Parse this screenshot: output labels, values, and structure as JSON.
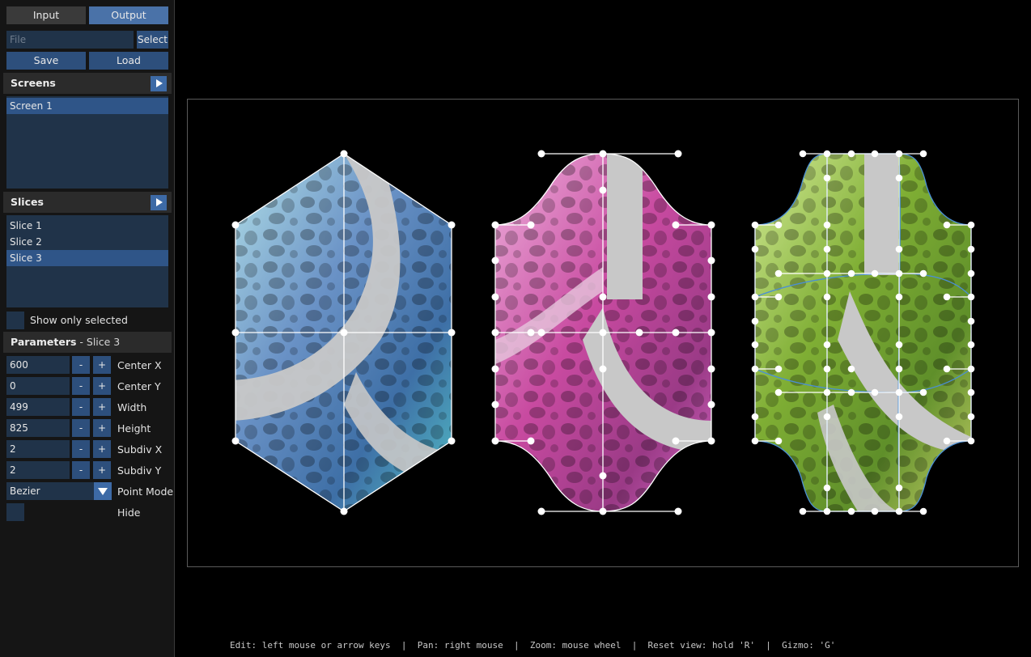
{
  "tabs": {
    "input_label": "Input",
    "output_label": "Output",
    "active": "output"
  },
  "file": {
    "placeholder": "File",
    "select_label": "Select"
  },
  "actions": {
    "save_label": "Save",
    "load_label": "Load"
  },
  "screens": {
    "title": "Screens",
    "items": [
      "Screen 1"
    ],
    "selected_index": 0
  },
  "slices": {
    "title": "Slices",
    "items": [
      "Slice 1",
      "Slice 2",
      "Slice 3"
    ],
    "selected_index": 2,
    "show_only_selected_label": "Show only selected"
  },
  "parameters": {
    "title": "Parameters",
    "subtitle": "Slice 3",
    "separator": " - ",
    "minus_label": "-",
    "plus_label": "+",
    "fields": [
      {
        "label": "Center X",
        "value": "600"
      },
      {
        "label": "Center Y",
        "value": "0"
      },
      {
        "label": "Width",
        "value": "499"
      },
      {
        "label": "Height",
        "value": "825"
      },
      {
        "label": "Subdiv X",
        "value": "2"
      },
      {
        "label": "Subdiv Y",
        "value": "2"
      }
    ],
    "point_mode": {
      "label": "Point Mode",
      "value": "Bezier"
    },
    "hide_label": "Hide"
  },
  "status_bar": "Edit: left mouse or arrow keys  |  Pan: right mouse  |  Zoom: mouse wheel  |  Reset view: hold 'R'  |  Gizmo: 'G'",
  "colors": {
    "accent": "#2d4f7c",
    "active_tab": "#4a72a8",
    "slice1_tint": "#5fc9cf",
    "slice2_tint": "#d94fb5",
    "slice3_tint": "#9ac43a",
    "slice3_outline": "#4a8fd6"
  }
}
